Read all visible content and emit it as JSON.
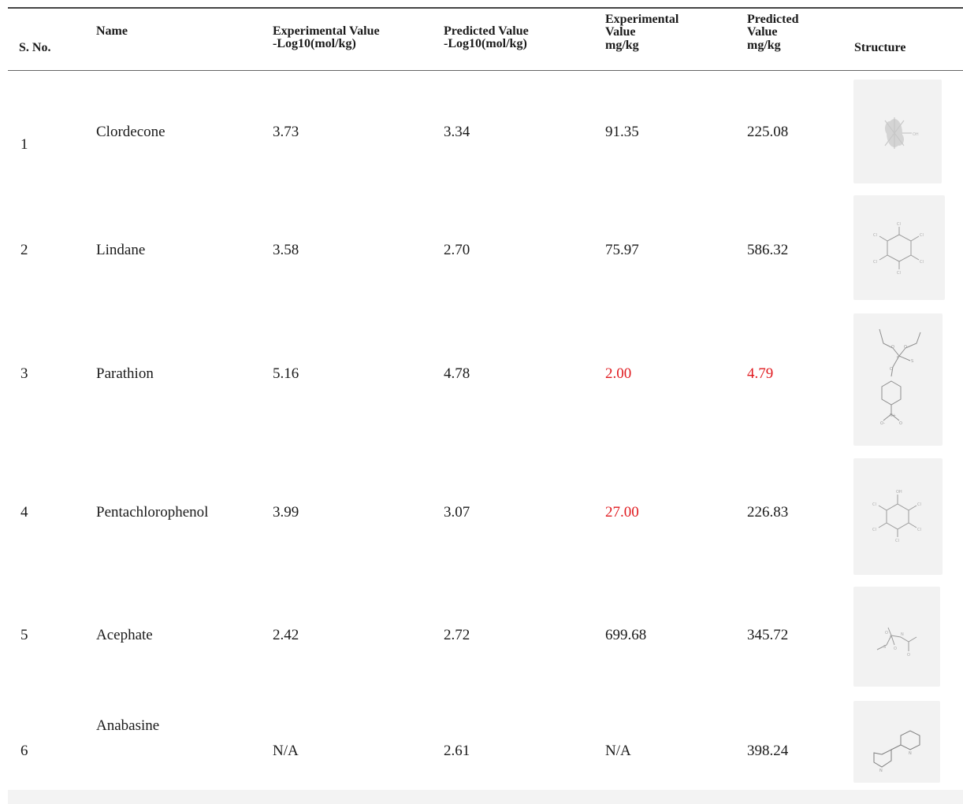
{
  "table": {
    "headers": {
      "sno": "S. No.",
      "name": "Name",
      "exp_log_1": "Experimental Value",
      "exp_log_2": "-Log10(mol/kg)",
      "pred_log_1": "Predicted Value",
      "pred_log_2": "-Log10(mol/kg)",
      "exp_mg_1": "Experimental",
      "exp_mg_2": "Value",
      "exp_mg_3": "mg/kg",
      "pred_mg_1": "Predicted",
      "pred_mg_2": "Value",
      "pred_mg_3": "mg/kg",
      "structure": "Structure"
    },
    "rows": [
      {
        "sno": "1",
        "name": "Clordecone",
        "exp_log": "3.73",
        "pred_log": "3.34",
        "exp_mg": "91.35",
        "pred_mg": "225.08"
      },
      {
        "sno": "2",
        "name": "Lindane",
        "exp_log": "3.58",
        "pred_log": "2.70",
        "exp_mg": "75.97",
        "pred_mg": "586.32"
      },
      {
        "sno": "3",
        "name": "Parathion",
        "exp_log": "5.16",
        "pred_log": "4.78",
        "exp_mg": "2.00",
        "pred_mg": "4.79"
      },
      {
        "sno": "4",
        "name": "Pentachlorophenol",
        "exp_log": "3.99",
        "pred_log": "3.07",
        "exp_mg": "27.00",
        "pred_mg": "226.83"
      },
      {
        "sno": "5",
        "name": "Acephate",
        "exp_log": "2.42",
        "pred_log": "2.72",
        "exp_mg": "699.68",
        "pred_mg": "345.72"
      },
      {
        "sno": "6",
        "name": "Anabasine",
        "exp_log": "N/A",
        "pred_log": "2.61",
        "exp_mg": "N/A",
        "pred_mg": "398.24"
      }
    ],
    "highlighted_cells": [
      {
        "row": 3,
        "column": "exp_mg"
      },
      {
        "row": 3,
        "column": "pred_mg"
      },
      {
        "row": 4,
        "column": "exp_mg"
      }
    ],
    "highlight_color": "#e0191e"
  }
}
